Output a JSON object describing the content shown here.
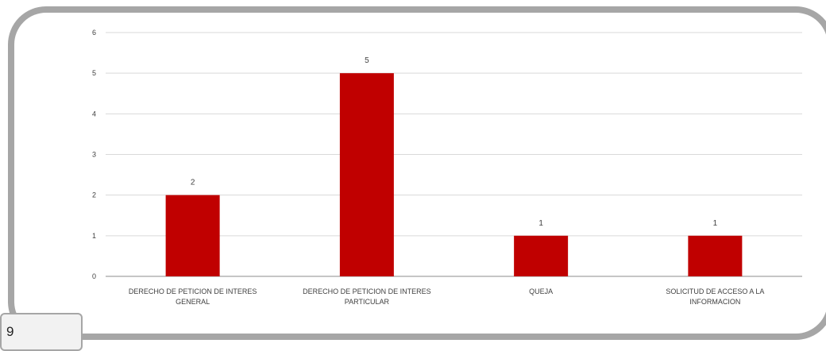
{
  "page": {
    "number": "9"
  },
  "colors": {
    "bar": "#c00000",
    "grid": "#d9d9d9",
    "frame": "#a6a6a6"
  },
  "chart_data": {
    "type": "bar",
    "categories": [
      [
        "DERECHO DE PETICION DE INTERES",
        "GENERAL"
      ],
      [
        "DERECHO DE PETICION DE INTERES",
        "PARTICULAR"
      ],
      [
        "QUEJA"
      ],
      [
        "SOLICITUD DE ACCESO A LA",
        "INFORMACION"
      ]
    ],
    "values": [
      2,
      5,
      1,
      1
    ],
    "data_labels": [
      "2",
      "5",
      "1",
      "1"
    ],
    "yticks": [
      "0",
      "1",
      "2",
      "3",
      "4",
      "5",
      "6"
    ],
    "ylim": [
      0,
      6
    ],
    "grid": true,
    "legend": "none"
  }
}
